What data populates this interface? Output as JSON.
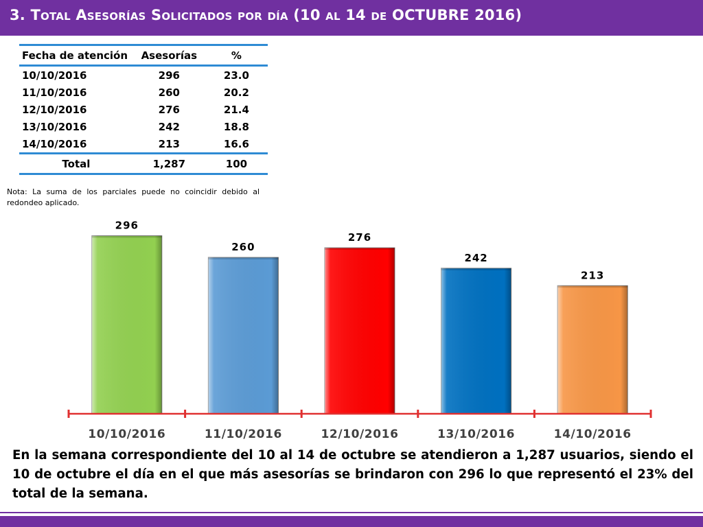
{
  "header": {
    "number": "3.",
    "title_smallcaps": "Total Asesorías Solicitados por día",
    "title_range_open": "(10",
    "title_al": "al",
    "title_day": "14",
    "title_de": "de",
    "title_range_close": "OCTUBRE 2016)"
  },
  "table": {
    "headers": [
      "Fecha de atención",
      "Asesorías",
      "%"
    ],
    "rows": [
      [
        "10/10/2016",
        "296",
        "23.0"
      ],
      [
        "11/10/2016",
        "260",
        "20.2"
      ],
      [
        "12/10/2016",
        "276",
        "21.4"
      ],
      [
        "13/10/2016",
        "242",
        "18.8"
      ],
      [
        "14/10/2016",
        "213",
        "16.6"
      ]
    ],
    "total": [
      "Total",
      "1,287",
      "100"
    ]
  },
  "note": "Nota: La suma de los parciales puede no coincidir debido al redondeo aplicado.",
  "chart_data": {
    "type": "bar",
    "categories": [
      "10/10/2016",
      "11/10/2016",
      "12/10/2016",
      "13/10/2016",
      "14/10/2016"
    ],
    "values": [
      296,
      260,
      276,
      242,
      213
    ],
    "colors": [
      "#92d050",
      "#5b9bd5",
      "#ff0000",
      "#0070c0",
      "#f79646"
    ],
    "title": "",
    "xlabel": "",
    "ylabel": "",
    "ylim": [
      0,
      300
    ],
    "axis_color": "#e03030",
    "data_labels": true,
    "grid": false
  },
  "summary": "En la semana correspondiente del 10 al 14 de octubre se atendieron a 1,287 usuarios, siendo el 10 de octubre el día en el que más asesorías se brindaron con 296 lo que representó el 23% del total de la semana."
}
